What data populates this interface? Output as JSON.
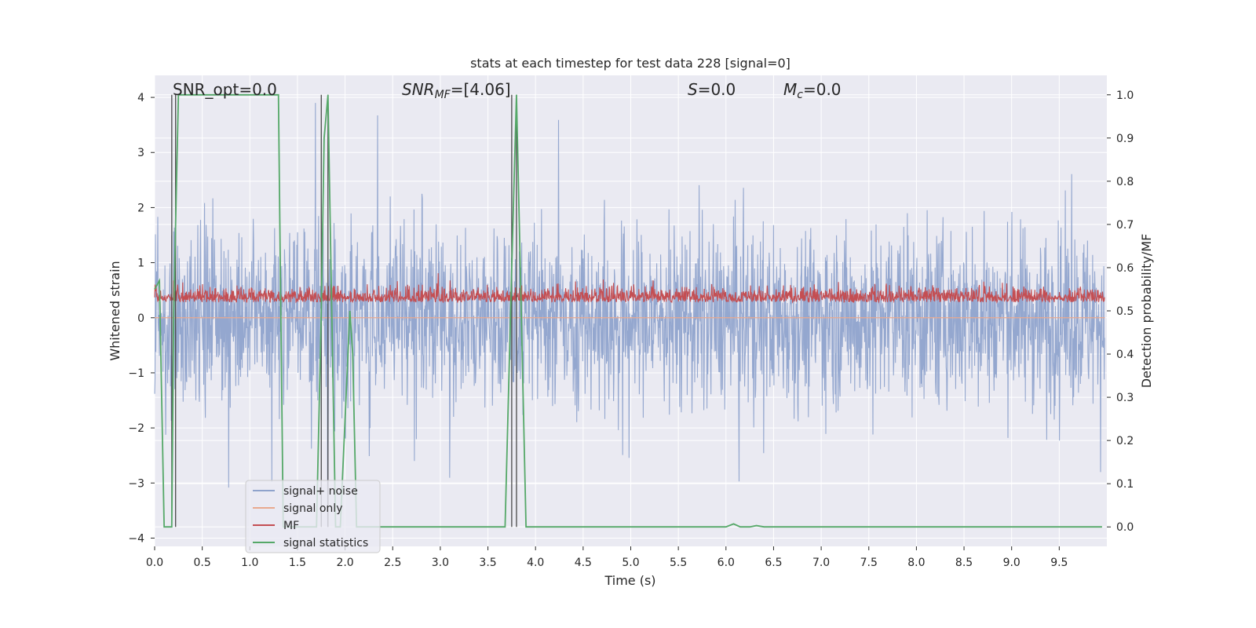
{
  "chart_data": {
    "type": "line",
    "title": "stats at each timestep for test data 228 [signal=0]",
    "xlabel": "Time (s)",
    "ylabel_left": "Whitened strain",
    "ylabel_right": "Detection probability/MF",
    "xlim": [
      0,
      10
    ],
    "ylim_left": [
      -4.15,
      4.4
    ],
    "ylim_right": [
      -0.045,
      1.045
    ],
    "x_ticks": [
      "0.0",
      "0.5",
      "1.0",
      "1.5",
      "2.0",
      "2.5",
      "3.0",
      "3.5",
      "4.0",
      "4.5",
      "5.0",
      "5.5",
      "6.0",
      "6.5",
      "7.0",
      "7.5",
      "8.0",
      "8.5",
      "9.0",
      "9.5"
    ],
    "y_ticks_left": [
      "−4",
      "−3",
      "−2",
      "−1",
      "0",
      "1",
      "2",
      "3",
      "4"
    ],
    "y_ticks_right": [
      "0.0",
      "0.1",
      "0.2",
      "0.3",
      "0.4",
      "0.5",
      "0.6",
      "0.7",
      "0.8",
      "0.9",
      "1.0"
    ],
    "grid": true,
    "legend_position": "lower-left",
    "annotations": {
      "snr_opt": "SNR_opt=0.0",
      "snr_mf": "SNR",
      "snr_mf_sub": "MF",
      "snr_mf_val": "=[4.06]",
      "s_sym": "S",
      "s_val": "=0.0",
      "mc_sym": "M",
      "mc_sub": "c",
      "mc_val": "=0.0"
    },
    "series": [
      {
        "name": "signal+ noise",
        "axis": "left",
        "color": "#8fa3cc",
        "style": "noise band, amplitude roughly ±1.5 with spikes to ±3.8"
      },
      {
        "name": "signal only",
        "axis": "left",
        "color": "#e9a98f",
        "values_constant": 0
      },
      {
        "name": "MF",
        "axis": "right",
        "color": "#c44e52",
        "style": "noise band between 0.50 and 0.60"
      },
      {
        "name": "signal statistics",
        "axis": "right",
        "color": "#55a868",
        "x": [
          0.0,
          0.05,
          0.1,
          0.18,
          0.2,
          0.25,
          1.3,
          1.32,
          1.35,
          1.7,
          1.75,
          1.78,
          1.82,
          1.86,
          1.9,
          1.95,
          2.05,
          2.08,
          2.12,
          2.2,
          2.5,
          3.0,
          3.5,
          3.68,
          3.75,
          3.8,
          3.85,
          3.9,
          4.5,
          5.0,
          5.5,
          5.9,
          6.0,
          6.08,
          6.15,
          6.25,
          6.32,
          6.4,
          7.0,
          8.0,
          9.0,
          9.95
        ],
        "values": [
          0.55,
          0.57,
          0.0,
          0.0,
          0.5,
          1.0,
          1.0,
          0.6,
          0.0,
          0.0,
          0.5,
          0.9,
          1.0,
          0.5,
          0.0,
          0.0,
          0.5,
          0.4,
          0.0,
          0.0,
          0.0,
          0.0,
          0.0,
          0.0,
          0.6,
          1.0,
          0.5,
          0.0,
          0.0,
          0.0,
          0.0,
          0.0,
          0.0,
          0.007,
          0.0,
          0.0,
          0.003,
          0.0,
          0.0,
          0.0,
          0.0,
          0.0
        ]
      }
    ],
    "markers_x": [
      0.18,
      0.22,
      1.75,
      1.82,
      3.75,
      3.8
    ],
    "colors": {
      "background": "#eaeaf2",
      "grid": "#ffffff",
      "marker_lines": "#4a4a4a"
    }
  }
}
